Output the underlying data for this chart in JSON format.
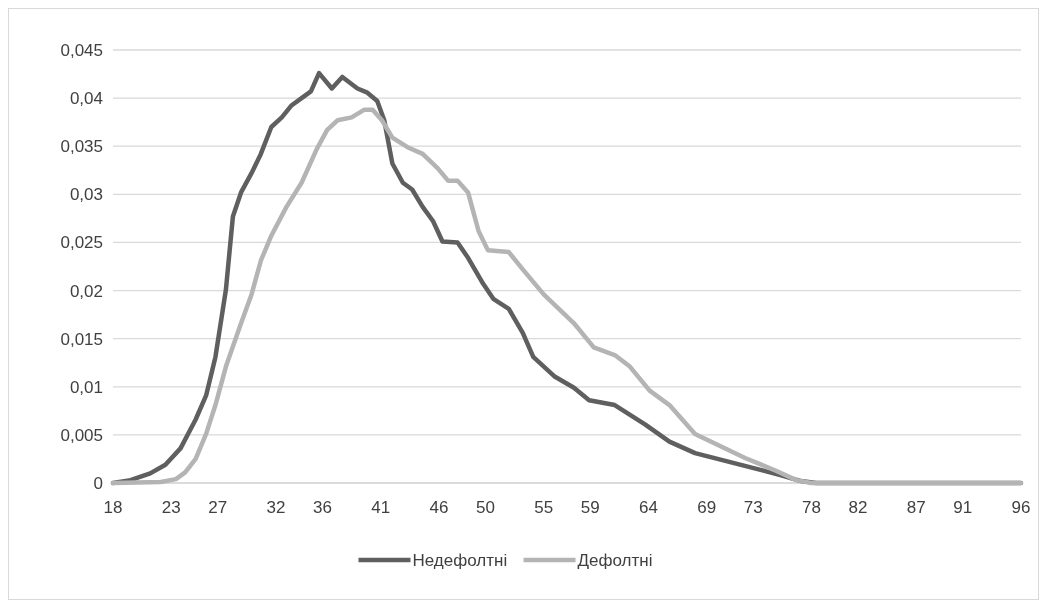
{
  "chart_data": {
    "type": "line",
    "xlim": [
      18,
      96
    ],
    "xticks": [
      18,
      23,
      27,
      32,
      36,
      41,
      46,
      50,
      55,
      59,
      64,
      69,
      73,
      78,
      82,
      87,
      91,
      96
    ],
    "ylim": [
      0,
      0.045
    ],
    "yticks": [
      0,
      {
        "value": 0.005,
        "label": "0,005"
      },
      {
        "value": 0.01,
        "label": "0,01"
      },
      {
        "value": 0.015,
        "label": "0,015"
      },
      {
        "value": 0.02,
        "label": "0,02"
      },
      {
        "value": 0.025,
        "label": "0,025"
      },
      {
        "value": 0.03,
        "label": "0,03"
      },
      {
        "value": 0.035,
        "label": "0,035"
      },
      {
        "value": 0.04,
        "label": "0,04"
      },
      {
        "value": 0.045,
        "label": "0,045"
      }
    ],
    "grid": "y",
    "legend": "bottom",
    "marker": "none",
    "line_style": "solid",
    "series": [
      {
        "name": "Недефолтні",
        "color": "#5f5f5f",
        "x": [
          18,
          19.5,
          21.2,
          22.5,
          23.8,
          25.1,
          26.0,
          26.8,
          27.7,
          28.3,
          29.0,
          29.9,
          30.7,
          31.6,
          32.5,
          33.3,
          34.2,
          35.0,
          35.7,
          36.8,
          37.7,
          39.0,
          39.8,
          40.7,
          41.3,
          42.0,
          42.9,
          43.7,
          44.6,
          45.5,
          46.3,
          47.6,
          48.5,
          49.8,
          50.7,
          52.0,
          53.2,
          54.1,
          55.9,
          57.6,
          58.9,
          61.1,
          63.7,
          65.8,
          68.0,
          70.6,
          73.2,
          75.4,
          77.1,
          78.4,
          96
        ],
        "values": [
          0,
          0.0003,
          0.001,
          0.0019,
          0.0036,
          0.0066,
          0.0091,
          0.0131,
          0.0201,
          0.0277,
          0.0302,
          0.0322,
          0.0342,
          0.037,
          0.038,
          0.0392,
          0.04,
          0.0407,
          0.0426,
          0.041,
          0.0422,
          0.041,
          0.0406,
          0.0397,
          0.0377,
          0.0332,
          0.0312,
          0.0305,
          0.0287,
          0.0272,
          0.0251,
          0.025,
          0.0234,
          0.0207,
          0.0191,
          0.0181,
          0.0156,
          0.0131,
          0.0111,
          0.0099,
          0.0086,
          0.0081,
          0.0061,
          0.0043,
          0.0031,
          0.0023,
          0.0015,
          0.0008,
          0.0002,
          0,
          0
        ]
      },
      {
        "name": "Дефолтні",
        "color": "#b4b4b4",
        "x": [
          18,
          22.1,
          23.4,
          24.2,
          25.1,
          26.0,
          26.8,
          27.7,
          29.0,
          29.9,
          30.7,
          31.6,
          32.9,
          34.2,
          35.5,
          36.4,
          37.3,
          38.5,
          39.6,
          40.3,
          41.1,
          42.0,
          43.3,
          44.6,
          45.9,
          46.8,
          47.6,
          48.5,
          49.4,
          50.2,
          52.0,
          53.2,
          55.0,
          57.6,
          59.3,
          61.1,
          62.4,
          64.1,
          65.8,
          68.0,
          69.7,
          72.3,
          74.9,
          76.7,
          78.0,
          96
        ],
        "values": [
          0,
          0.0001,
          0.0004,
          0.0011,
          0.0025,
          0.0051,
          0.0081,
          0.0121,
          0.0166,
          0.0196,
          0.0231,
          0.0257,
          0.0287,
          0.0312,
          0.0347,
          0.0367,
          0.0377,
          0.038,
          0.0388,
          0.0388,
          0.0377,
          0.0359,
          0.0349,
          0.0342,
          0.0327,
          0.0314,
          0.0314,
          0.0302,
          0.0262,
          0.0242,
          0.024,
          0.0222,
          0.0196,
          0.0166,
          0.0141,
          0.0133,
          0.0121,
          0.0096,
          0.0081,
          0.0051,
          0.0041,
          0.0026,
          0.0013,
          0.0003,
          0,
          0
        ]
      }
    ]
  }
}
